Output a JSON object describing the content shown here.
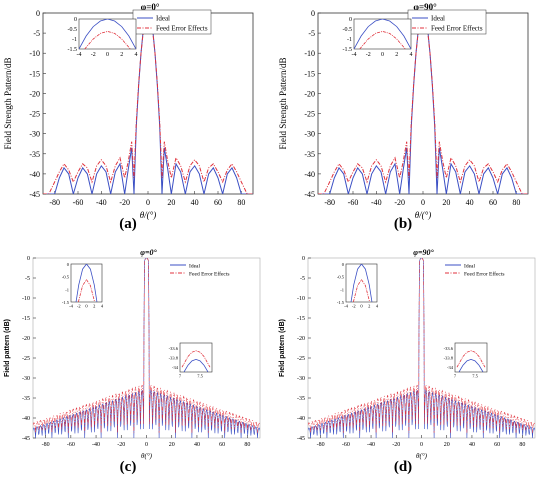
{
  "chart_data": [
    {
      "panel": "(a)",
      "type": "line",
      "title": "φ=0°",
      "xlabel": "θ/(°)",
      "ylabel": "Field Strength Pattern/dB",
      "xlim": [
        -90,
        90
      ],
      "ylim": [
        -45,
        0
      ],
      "xticks": [
        "-80",
        "-60",
        "-40",
        "-20",
        "0",
        "20",
        "40",
        "60",
        "80"
      ],
      "yticks": [
        "0",
        "-5",
        "-10",
        "-15",
        "-20",
        "-25",
        "-30",
        "-35",
        "-40",
        "-45"
      ],
      "legend_position": "top-right",
      "series": [
        {
          "name": "Ideal",
          "color": "#3b4fc4",
          "dash": "solid",
          "x": [
            -90,
            -85,
            -80,
            -76,
            -72,
            -68,
            -64,
            -60,
            -56,
            -52,
            -48,
            -44,
            -40,
            -36,
            -32,
            -28,
            -24,
            -20,
            -17,
            -14,
            -12,
            -10,
            -8,
            -6,
            -4,
            -2,
            0,
            2,
            4,
            6,
            8,
            10,
            12,
            14,
            17,
            20,
            24,
            28,
            32,
            36,
            40,
            44,
            48,
            52,
            56,
            60,
            64,
            68,
            72,
            76,
            80,
            85,
            90
          ],
          "y": [
            -45,
            -45,
            -45,
            -41,
            -38.5,
            -40,
            -45,
            -41,
            -38.5,
            -40,
            -45,
            -40,
            -38,
            -39.5,
            -45,
            -39.5,
            -37.5,
            -45,
            -39,
            -33.5,
            -45,
            -28,
            -18,
            -10,
            -4,
            -1,
            0,
            -1,
            -4,
            -10,
            -18,
            -28,
            -45,
            -33.5,
            -39,
            -45,
            -37.5,
            -39.5,
            -45,
            -39.5,
            -38,
            -40,
            -45,
            -40,
            -38.5,
            -41,
            -45,
            -40,
            -38.5,
            -41,
            -45,
            -45,
            -45
          ]
        },
        {
          "name": "Feed Error Effects",
          "color": "#e0323c",
          "dash": "dashdot",
          "x": [
            -90,
            -85,
            -80,
            -76,
            -72,
            -68,
            -64,
            -60,
            -56,
            -52,
            -48,
            -44,
            -40,
            -36,
            -32,
            -28,
            -24,
            -20,
            -17,
            -14,
            -12,
            -10,
            -8,
            -6,
            -4,
            -2,
            0,
            2,
            4,
            6,
            8,
            10,
            12,
            14,
            17,
            20,
            24,
            28,
            32,
            36,
            40,
            44,
            48,
            52,
            56,
            60,
            64,
            68,
            72,
            76,
            80,
            85,
            90
          ],
          "y": [
            -45,
            -45,
            -42,
            -39.5,
            -37.5,
            -39,
            -42,
            -39.5,
            -37.5,
            -38.5,
            -42,
            -38,
            -36.5,
            -38,
            -42,
            -38,
            -36,
            -41,
            -37,
            -32,
            -41,
            -27,
            -17.5,
            -10,
            -4.5,
            -1.5,
            -0.5,
            -1.5,
            -4.5,
            -10,
            -17.5,
            -27,
            -41,
            -32,
            -37,
            -41,
            -36,
            -38,
            -42,
            -38,
            -36.5,
            -38,
            -42,
            -38.5,
            -37.5,
            -39.5,
            -42,
            -39,
            -37.5,
            -39.5,
            -42,
            -45,
            -45
          ]
        }
      ],
      "insets": [
        {
          "xlim": [
            -4,
            4
          ],
          "ylim": [
            -1.5,
            0
          ],
          "xticks": [
            "-4",
            "-2",
            "0",
            "2",
            "4"
          ],
          "yticks": [
            "0",
            "-0.5",
            "-1",
            "-1.5"
          ],
          "series": [
            {
              "x": [
                -4,
                -3,
                -2,
                -1,
                0,
                1,
                2,
                3,
                4
              ],
              "y": [
                -1.5,
                -0.85,
                -0.38,
                -0.1,
                0,
                -0.1,
                -0.38,
                -0.85,
                -1.5
              ]
            },
            {
              "x": [
                -3.2,
                -2,
                -1,
                0,
                1,
                2,
                3.2
              ],
              "y": [
                -1.5,
                -1.0,
                -0.72,
                -0.62,
                -0.72,
                -1.0,
                -1.5
              ]
            }
          ]
        }
      ]
    },
    {
      "panel": "(b)",
      "type": "line",
      "title": "φ=90°",
      "xlabel": "θ/(°)",
      "ylabel": "Field Strength Pattern/dB",
      "xlim": [
        -90,
        90
      ],
      "ylim": [
        -45,
        0
      ],
      "xticks": [
        "-80",
        "-60",
        "-40",
        "-20",
        "0",
        "20",
        "40",
        "60",
        "80"
      ],
      "yticks": [
        "0",
        "-5",
        "-10",
        "-15",
        "-20",
        "-25",
        "-30",
        "-35",
        "-40",
        "-45"
      ],
      "legend_position": "top-right",
      "series": [
        {
          "name": "Ideal",
          "color": "#3b4fc4",
          "dash": "solid",
          "x": [
            -90,
            -85,
            -80,
            -76,
            -72,
            -68,
            -64,
            -60,
            -56,
            -52,
            -48,
            -44,
            -40,
            -36,
            -32,
            -28,
            -24,
            -20,
            -17,
            -14,
            -12,
            -10,
            -8,
            -6,
            -4,
            -2,
            0,
            2,
            4,
            6,
            8,
            10,
            12,
            14,
            17,
            20,
            24,
            28,
            32,
            36,
            40,
            44,
            48,
            52,
            56,
            60,
            64,
            68,
            72,
            76,
            80,
            85,
            90
          ],
          "y": [
            -45,
            -45,
            -45,
            -41,
            -38.5,
            -40,
            -45,
            -41,
            -38.5,
            -40,
            -45,
            -40,
            -38,
            -39.5,
            -45,
            -39.5,
            -37.5,
            -45,
            -39,
            -33.5,
            -45,
            -28,
            -18,
            -10,
            -4,
            -1,
            0,
            -1,
            -4,
            -10,
            -18,
            -28,
            -45,
            -33.5,
            -39,
            -45,
            -37.5,
            -39.5,
            -45,
            -39.5,
            -38,
            -40,
            -45,
            -40,
            -38.5,
            -41,
            -45,
            -40,
            -38.5,
            -41,
            -45,
            -45,
            -45
          ]
        },
        {
          "name": "Feed Error Effects",
          "color": "#e0323c",
          "dash": "dashdot",
          "x": [
            -90,
            -85,
            -80,
            -76,
            -72,
            -68,
            -64,
            -60,
            -56,
            -52,
            -48,
            -44,
            -40,
            -36,
            -32,
            -28,
            -24,
            -20,
            -17,
            -14,
            -12,
            -10,
            -8,
            -6,
            -4,
            -2,
            0,
            2,
            4,
            6,
            8,
            10,
            12,
            14,
            17,
            20,
            24,
            28,
            32,
            36,
            40,
            44,
            48,
            52,
            56,
            60,
            64,
            68,
            72,
            76,
            80,
            85,
            90
          ],
          "y": [
            -45,
            -45,
            -42,
            -39.5,
            -37.5,
            -39,
            -42,
            -39.5,
            -37.5,
            -38.5,
            -42,
            -38,
            -36.5,
            -38,
            -42,
            -38,
            -36,
            -41,
            -37,
            -32,
            -41,
            -27,
            -17.5,
            -10,
            -4.5,
            -1.5,
            -0.5,
            -1.5,
            -4.5,
            -10,
            -17.5,
            -27,
            -41,
            -32,
            -37,
            -41,
            -36,
            -38,
            -42,
            -38,
            -36.5,
            -38,
            -42,
            -38.5,
            -37.5,
            -39.5,
            -42,
            -39,
            -37.5,
            -39.5,
            -42,
            -45,
            -45
          ]
        }
      ],
      "insets": [
        {
          "xlim": [
            -4,
            4
          ],
          "ylim": [
            -1.5,
            0
          ],
          "xticks": [
            "-4",
            "-2",
            "0",
            "2",
            "4"
          ],
          "yticks": [
            "0",
            "-0.5",
            "-1",
            "-1.5"
          ],
          "series": [
            {
              "x": [
                -4,
                -3,
                -2,
                -1,
                0,
                1,
                2,
                3,
                4
              ],
              "y": [
                -1.5,
                -0.85,
                -0.38,
                -0.1,
                0,
                -0.1,
                -0.38,
                -0.85,
                -1.5
              ]
            },
            {
              "x": [
                -3.2,
                -2,
                -1,
                0,
                1,
                2,
                3.2
              ],
              "y": [
                -1.5,
                -1.0,
                -0.72,
                -0.62,
                -0.72,
                -1.0,
                -1.5
              ]
            }
          ]
        }
      ]
    },
    {
      "panel": "(c)",
      "type": "line",
      "title": "φ=0°",
      "xlabel": "θ(°)",
      "ylabel": "Field pattern (dB)",
      "xlim": [
        -90,
        90
      ],
      "ylim": [
        -45,
        0
      ],
      "xticks": [
        "-80",
        "-60",
        "-40",
        "-20",
        "0",
        "20",
        "40",
        "60",
        "80"
      ],
      "yticks": [
        "0",
        "-5",
        "-10",
        "-15",
        "-20",
        "-25",
        "-30",
        "-35",
        "-40",
        "-45"
      ],
      "legend_position": "top-right",
      "series": [
        {
          "name": "Ideal",
          "color": "#3b4fc4",
          "dash": "solid",
          "model": "dense",
          "offset": 0
        },
        {
          "name": "Feed Error Effects",
          "color": "#e0323c",
          "dash": "dashdot",
          "model": "dense",
          "offset": 1.3
        }
      ],
      "insets": [
        {
          "xlim": [
            -4,
            4
          ],
          "ylim": [
            -1.5,
            0
          ],
          "xticks": [
            "-4",
            "-2",
            "0",
            "2",
            "4"
          ],
          "yticks": [
            "0",
            "-0.5",
            "-1",
            "-1.5"
          ],
          "series": [
            {
              "x": [
                -2.7,
                -2,
                -1,
                0,
                1,
                2,
                2.7
              ],
              "y": [
                -1.5,
                -0.82,
                -0.2,
                0,
                -0.2,
                -0.82,
                -1.5
              ]
            },
            {
              "x": [
                -2.1,
                -1,
                0,
                1,
                2.1
              ],
              "y": [
                -1.5,
                -0.85,
                -0.62,
                -0.85,
                -1.5
              ]
            }
          ]
        },
        {
          "xlim": [
            7,
            7.8
          ],
          "ylim": [
            -34.1,
            -33.5
          ],
          "xticks": [
            "7",
            "7.5"
          ],
          "yticks": [
            "-33.6",
            "-33.8",
            "-34"
          ],
          "series": [
            {
              "x": [
                7.1,
                7.2,
                7.3,
                7.4,
                7.5,
                7.6,
                7.7
              ],
              "y": [
                -34.1,
                -33.96,
                -33.87,
                -33.84,
                -33.87,
                -33.96,
                -34.1
              ]
            },
            {
              "x": [
                7.05,
                7.2,
                7.3,
                7.4,
                7.5,
                7.6,
                7.75
              ],
              "y": [
                -34.0,
                -33.78,
                -33.69,
                -33.66,
                -33.69,
                -33.78,
                -34.0
              ]
            }
          ]
        }
      ]
    },
    {
      "panel": "(d)",
      "type": "line",
      "title": "φ=90°",
      "xlabel": "θ(°)",
      "ylabel": "Field pattern (dB)",
      "xlim": [
        -90,
        90
      ],
      "ylim": [
        -45,
        0
      ],
      "xticks": [
        "-80",
        "-60",
        "-40",
        "-20",
        "0",
        "20",
        "40",
        "60",
        "80"
      ],
      "yticks": [
        "0",
        "-5",
        "-10",
        "-15",
        "-20",
        "-25",
        "-30",
        "-35",
        "-40",
        "-45"
      ],
      "legend_position": "top-right",
      "series": [
        {
          "name": "Ideal",
          "color": "#3b4fc4",
          "dash": "solid",
          "model": "dense",
          "offset": 0
        },
        {
          "name": "Feed Error Effects",
          "color": "#e0323c",
          "dash": "dashdot",
          "model": "dense",
          "offset": 1.3
        }
      ],
      "insets": [
        {
          "xlim": [
            -4,
            4
          ],
          "ylim": [
            -1.5,
            0
          ],
          "xticks": [
            "-4",
            "-2",
            "0",
            "2",
            "4"
          ],
          "yticks": [
            "0",
            "-0.5",
            "-1",
            "-1.5"
          ],
          "series": [
            {
              "x": [
                -2.7,
                -2,
                -1,
                0,
                1,
                2,
                2.7
              ],
              "y": [
                -1.5,
                -0.82,
                -0.2,
                0,
                -0.2,
                -0.82,
                -1.5
              ]
            },
            {
              "x": [
                -2.1,
                -1,
                0,
                1,
                2.1
              ],
              "y": [
                -1.5,
                -0.85,
                -0.62,
                -0.85,
                -1.5
              ]
            }
          ]
        },
        {
          "xlim": [
            7,
            7.8
          ],
          "ylim": [
            -34.1,
            -33.5
          ],
          "xticks": [
            "7",
            "7.5"
          ],
          "yticks": [
            "-33.6",
            "-33.8",
            "-34"
          ],
          "series": [
            {
              "x": [
                7.1,
                7.2,
                7.3,
                7.4,
                7.5,
                7.6,
                7.7
              ],
              "y": [
                -34.1,
                -33.96,
                -33.87,
                -33.84,
                -33.87,
                -33.96,
                -34.1
              ]
            },
            {
              "x": [
                7.05,
                7.2,
                7.3,
                7.4,
                7.5,
                7.6,
                7.75
              ],
              "y": [
                -34.0,
                -33.78,
                -33.69,
                -33.66,
                -33.69,
                -33.78,
                -34.0
              ]
            }
          ]
        }
      ]
    }
  ]
}
